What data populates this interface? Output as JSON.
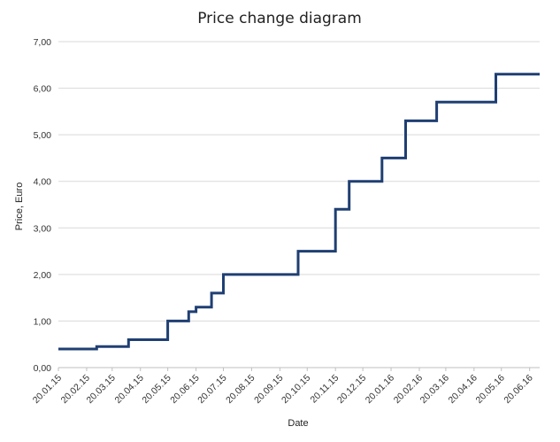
{
  "chart_data": {
    "type": "line",
    "step": true,
    "title": "Price change diagram",
    "xlabel": "Date",
    "ylabel": "Price, Euro",
    "ylim": [
      0,
      7
    ],
    "yticks": [
      "0,00",
      "1,00",
      "2,00",
      "3,00",
      "4,00",
      "5,00",
      "6,00",
      "7,00"
    ],
    "xticks": [
      "20.01.15",
      "20.02.15",
      "20.03.15",
      "20.04.15",
      "20.05.15",
      "20.06.15",
      "20.07.15",
      "20.08.15",
      "20.09.15",
      "20.10.15",
      "20.11.15",
      "20.12.15",
      "20.01.16",
      "20.02.16",
      "20.03.16",
      "20.04.16",
      "20.05.16",
      "20.06.16"
    ],
    "xlim": [
      "20.01.15",
      "01.07.16"
    ],
    "grid": true,
    "legend": "none",
    "line_color": "#1f3f73",
    "series": [
      {
        "x": [
          "20.01.15",
          "03.03.15",
          "07.04.15",
          "20.05.15",
          "12.06.15",
          "20.06.15",
          "07.07.15",
          "20.07.15",
          "10.10.15",
          "20.11.15",
          "05.12.15",
          "10.01.16",
          "05.02.16",
          "10.03.16",
          "14.05.16",
          "01.07.16"
        ],
        "y": [
          0.4,
          0.45,
          0.6,
          1.0,
          1.2,
          1.3,
          1.6,
          2.0,
          2.5,
          3.4,
          4.0,
          4.5,
          5.3,
          5.7,
          6.3,
          6.3
        ]
      }
    ]
  }
}
